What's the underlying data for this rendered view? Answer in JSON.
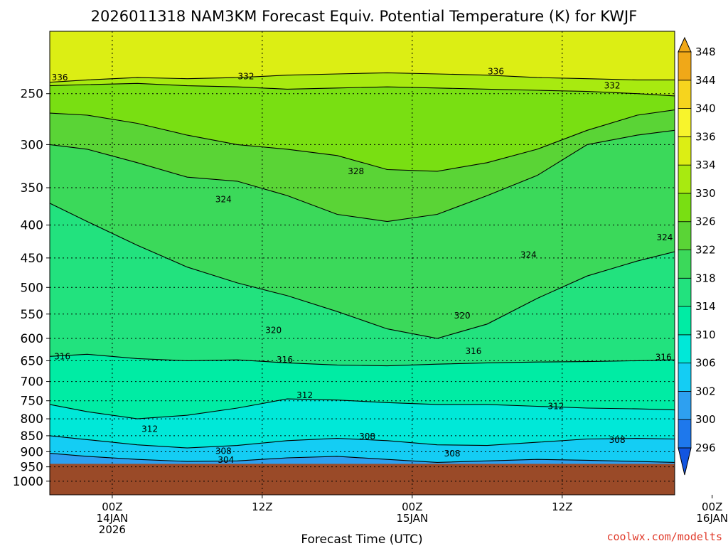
{
  "chart_data": {
    "type": "heatmap",
    "title": "2026011318 NAM3KM Forecast Equiv. Potential Temperature (K) for KWJF",
    "xlabel": "Forecast Time (UTC)",
    "ylabel": "",
    "credit": "coolwx.com/modelts",
    "y_scale": "log",
    "y_inverted": true,
    "ylim": [
      1050,
      200
    ],
    "xlim_hours": [
      -5,
      45
    ],
    "y_ticks": [
      250,
      300,
      350,
      400,
      450,
      500,
      550,
      600,
      650,
      700,
      750,
      800,
      850,
      900,
      950,
      1000
    ],
    "x_ticks": [
      {
        "hour": 0,
        "label": [
          "00Z",
          "14JAN",
          "2026"
        ]
      },
      {
        "hour": 12,
        "label": [
          "12Z"
        ]
      },
      {
        "hour": 24,
        "label": [
          "00Z",
          "15JAN"
        ]
      },
      {
        "hour": 36,
        "label": [
          "12Z"
        ]
      },
      {
        "hour": 48,
        "label": [
          "00Z",
          "16JAN"
        ]
      }
    ],
    "grid": true,
    "surface_pressure": 940,
    "ground_color": "#9a4a28",
    "colorbar": {
      "levels": [
        296,
        300,
        302,
        306,
        310,
        314,
        318,
        322,
        326,
        330,
        334,
        336,
        340,
        344,
        348
      ],
      "colors": [
        "#1255e0",
        "#1e78ec",
        "#2ea0f0",
        "#14cdf4",
        "#00e8d8",
        "#00eca4",
        "#22e27e",
        "#3bd95a",
        "#5ad436",
        "#79df12",
        "#a8ea10",
        "#dcee14",
        "#f8f42c",
        "#f6d41e",
        "#f0a818"
      ],
      "placement": "right"
    },
    "series": [
      {
        "level": 336,
        "x": [
          -5,
          -2,
          2,
          6,
          10,
          14,
          18,
          22,
          26,
          30,
          34,
          38,
          42,
          45
        ],
        "y": [
          240,
          238,
          236,
          237,
          236,
          234,
          233,
          232,
          233,
          234,
          236,
          237,
          238,
          238
        ]
      },
      {
        "level": 332,
        "x": [
          -5,
          -2,
          2,
          6,
          10,
          14,
          18,
          22,
          26,
          30,
          34,
          38,
          42,
          45
        ],
        "y": [
          243,
          242,
          241,
          243,
          244,
          246,
          245,
          244,
          245,
          246,
          247,
          248,
          250,
          252
        ]
      },
      {
        "level": 328,
        "x": [
          -5,
          -2,
          2,
          6,
          10,
          14,
          18,
          22,
          26,
          30,
          34,
          38,
          42,
          45
        ],
        "y": [
          268,
          270,
          278,
          290,
          300,
          305,
          312,
          328,
          330,
          320,
          305,
          285,
          270,
          265
        ]
      },
      {
        "level": 324,
        "x": [
          -5,
          -2,
          2,
          6,
          10,
          14,
          18,
          22,
          26,
          30,
          34,
          38,
          42,
          45
        ],
        "y": [
          300,
          305,
          320,
          337,
          342,
          360,
          385,
          395,
          385,
          360,
          335,
          300,
          290,
          285
        ]
      },
      {
        "level": 320,
        "x": [
          -5,
          -2,
          2,
          6,
          10,
          14,
          18,
          22,
          26,
          30,
          34,
          38,
          42,
          45
        ],
        "y": [
          370,
          395,
          430,
          465,
          492,
          515,
          545,
          580,
          600,
          570,
          520,
          480,
          455,
          440
        ]
      },
      {
        "level": 316,
        "x": [
          -5,
          -2,
          2,
          6,
          10,
          14,
          18,
          22,
          26,
          30,
          34,
          38,
          42,
          45
        ],
        "y": [
          640,
          635,
          645,
          650,
          648,
          655,
          660,
          662,
          658,
          655,
          653,
          652,
          650,
          648
        ]
      },
      {
        "level": 312,
        "x": [
          -5,
          -2,
          2,
          6,
          10,
          14,
          18,
          22,
          26,
          30,
          34,
          38,
          42,
          45
        ],
        "y": [
          760,
          780,
          800,
          790,
          770,
          745,
          748,
          755,
          760,
          760,
          765,
          770,
          772,
          775
        ]
      },
      {
        "level": 308,
        "x": [
          -5,
          -2,
          2,
          6,
          10,
          14,
          18,
          22,
          26,
          30,
          34,
          38,
          42,
          45
        ],
        "y": [
          850,
          862,
          878,
          888,
          880,
          865,
          858,
          865,
          878,
          880,
          870,
          860,
          858,
          860
        ]
      },
      {
        "level": 304,
        "x": [
          -5,
          -2,
          2,
          6,
          10,
          14,
          18,
          22,
          26,
          30,
          34,
          38,
          42,
          45
        ],
        "y": [
          905,
          915,
          925,
          932,
          930,
          920,
          915,
          925,
          935,
          930,
          925,
          928,
          932,
          935
        ]
      }
    ],
    "contour_labels": [
      {
        "text": "336",
        "x": -4.2,
        "y": 236
      },
      {
        "text": "332",
        "x": 10.7,
        "y": 235
      },
      {
        "text": "336",
        "x": 30.7,
        "y": 231
      },
      {
        "text": "332",
        "x": 40.0,
        "y": 243
      },
      {
        "text": "328",
        "x": 19.5,
        "y": 330
      },
      {
        "text": "324",
        "x": 8.9,
        "y": 365
      },
      {
        "text": "324",
        "x": 33.3,
        "y": 445
      },
      {
        "text": "324",
        "x": 44.2,
        "y": 418
      },
      {
        "text": "320",
        "x": 12.9,
        "y": 583
      },
      {
        "text": "320",
        "x": 28.0,
        "y": 553
      },
      {
        "text": "316",
        "x": -4.0,
        "y": 640
      },
      {
        "text": "316",
        "x": 13.8,
        "y": 648
      },
      {
        "text": "316",
        "x": 28.9,
        "y": 628
      },
      {
        "text": "316",
        "x": 44.1,
        "y": 642
      },
      {
        "text": "312",
        "x": 3.0,
        "y": 830
      },
      {
        "text": "312",
        "x": 15.4,
        "y": 735
      },
      {
        "text": "312",
        "x": 35.5,
        "y": 765
      },
      {
        "text": "308",
        "x": 20.4,
        "y": 852
      },
      {
        "text": "308",
        "x": 40.4,
        "y": 863
      },
      {
        "text": "308",
        "x": 8.9,
        "y": 898
      },
      {
        "text": "308",
        "x": 27.2,
        "y": 906
      },
      {
        "text": "304",
        "x": 9.1,
        "y": 927
      }
    ]
  }
}
